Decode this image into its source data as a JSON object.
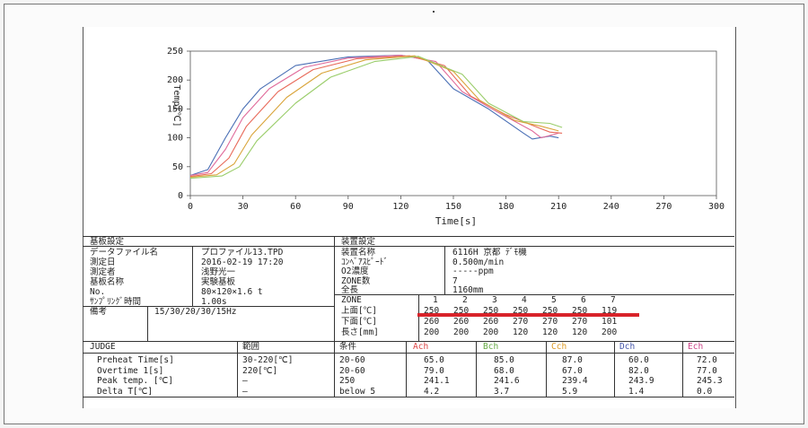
{
  "chart_data": {
    "type": "line",
    "xlabel": "Time[s]",
    "ylabel": "Temp[℃]",
    "xlim": [
      0,
      300
    ],
    "ylim": [
      0,
      250
    ],
    "x_ticks": [
      "0",
      "30",
      "60",
      "90",
      "120",
      "150",
      "180",
      "210",
      "240",
      "270",
      "300"
    ],
    "y_ticks": [
      "0",
      "50",
      "100",
      "150",
      "200",
      "250"
    ],
    "series": [
      {
        "color": "#4a6fb5",
        "x": [
          0,
          10,
          20,
          30,
          40,
          60,
          90,
          120,
          135,
          150,
          170,
          190,
          195,
          205,
          210
        ],
        "y": [
          35,
          45,
          100,
          150,
          185,
          225,
          240,
          243,
          235,
          185,
          150,
          108,
          98,
          103,
          100
        ]
      },
      {
        "color": "#e06a9a",
        "x": [
          0,
          10,
          20,
          30,
          45,
          65,
          90,
          120,
          140,
          155,
          175,
          195,
          200,
          210
        ],
        "y": [
          35,
          40,
          80,
          135,
          185,
          222,
          238,
          243,
          232,
          180,
          145,
          112,
          100,
          108
        ]
      },
      {
        "color": "#e86a5a",
        "x": [
          0,
          12,
          22,
          32,
          50,
          70,
          95,
          125,
          145,
          160,
          180,
          198,
          205,
          212
        ],
        "y": [
          33,
          38,
          65,
          120,
          180,
          218,
          237,
          242,
          225,
          172,
          140,
          118,
          110,
          108
        ]
      },
      {
        "color": "#d9a43a",
        "x": [
          0,
          15,
          25,
          35,
          55,
          75,
          100,
          128,
          150,
          165,
          185,
          200,
          210
        ],
        "y": [
          32,
          36,
          55,
          105,
          170,
          212,
          235,
          242,
          215,
          165,
          130,
          120,
          112
        ]
      },
      {
        "color": "#9acd6a",
        "x": [
          0,
          18,
          28,
          38,
          60,
          80,
          105,
          130,
          155,
          170,
          190,
          205,
          212
        ],
        "y": [
          30,
          34,
          50,
          95,
          160,
          205,
          232,
          241,
          210,
          160,
          128,
          125,
          118
        ]
      }
    ]
  },
  "substrate": {
    "header": "基板設定",
    "rows": [
      {
        "label": "データファイル名",
        "value": "プロファイル13.TPD"
      },
      {
        "label": "測定日",
        "value": "2016-02-19  17:20"
      },
      {
        "label": "測定者",
        "value": "浅野光一"
      },
      {
        "label": "基板名称",
        "value": "実験基板"
      },
      {
        "label": "No.",
        "value": "80×120×1.6 t"
      },
      {
        "label": "ｻﾝﾌﾟﾘﾝｸﾞ時間",
        "value": "1.00s"
      }
    ],
    "remarks_label": "備考",
    "remarks_value": "15/30/20/30/15Hz"
  },
  "device": {
    "header": "装置設定",
    "rows": [
      {
        "label": "装置名称",
        "value": "6116H 京都 ﾃﾞﾓ機"
      },
      {
        "label": "ｺﾝﾍﾞｱｽﾋﾟｰﾄﾞ",
        "value": "0.500m/min"
      },
      {
        "label": "O2濃度",
        "value": "-----ppm"
      },
      {
        "label": "ZONE数",
        "value": "7"
      },
      {
        "label": "全長",
        "value": "1160mm"
      }
    ],
    "zone_label": "ZONE",
    "zones": [
      "1",
      "2",
      "3",
      "4",
      "5",
      "6",
      "7"
    ],
    "upper_label": "上面[℃]",
    "upper": [
      "250",
      "250",
      "250",
      "250",
      "250",
      "250",
      "119"
    ],
    "lower_label": "下面[℃]",
    "lower": [
      "260",
      "260",
      "260",
      "270",
      "270",
      "270",
      "101"
    ],
    "length_label": "長さ[mm]",
    "length": [
      "200",
      "200",
      "200",
      "120",
      "120",
      "120",
      "200"
    ]
  },
  "judge": {
    "headers": {
      "judge": "JUDGE",
      "range": "範囲",
      "cond": "条件",
      "a": "Ach",
      "b": "Bch",
      "c": "Cch",
      "d": "Dch",
      "e": "Ech"
    },
    "rows": [
      {
        "name": "Preheat Time[s]",
        "range": "30-220[℃]",
        "cond": "20-60",
        "a": "65.0",
        "b": "85.0",
        "c": "87.0",
        "d": "60.0",
        "e": "72.0"
      },
      {
        "name": "Overtime 1[s]",
        "range": "220[℃]",
        "cond": "20-60",
        "a": "79.0",
        "b": "68.0",
        "c": "67.0",
        "d": "82.0",
        "e": "77.0"
      },
      {
        "name": "Peak temp. [℃]",
        "range": "—",
        "cond": "250",
        "a": "241.1",
        "b": "241.6",
        "c": "239.4",
        "d": "243.9",
        "e": "245.3"
      },
      {
        "name": "Delta T[℃]",
        "range": "—",
        "cond": "below 5",
        "a": "4.2",
        "b": "3.7",
        "c": "5.9",
        "d": "1.4",
        "e": "0.0"
      }
    ]
  }
}
